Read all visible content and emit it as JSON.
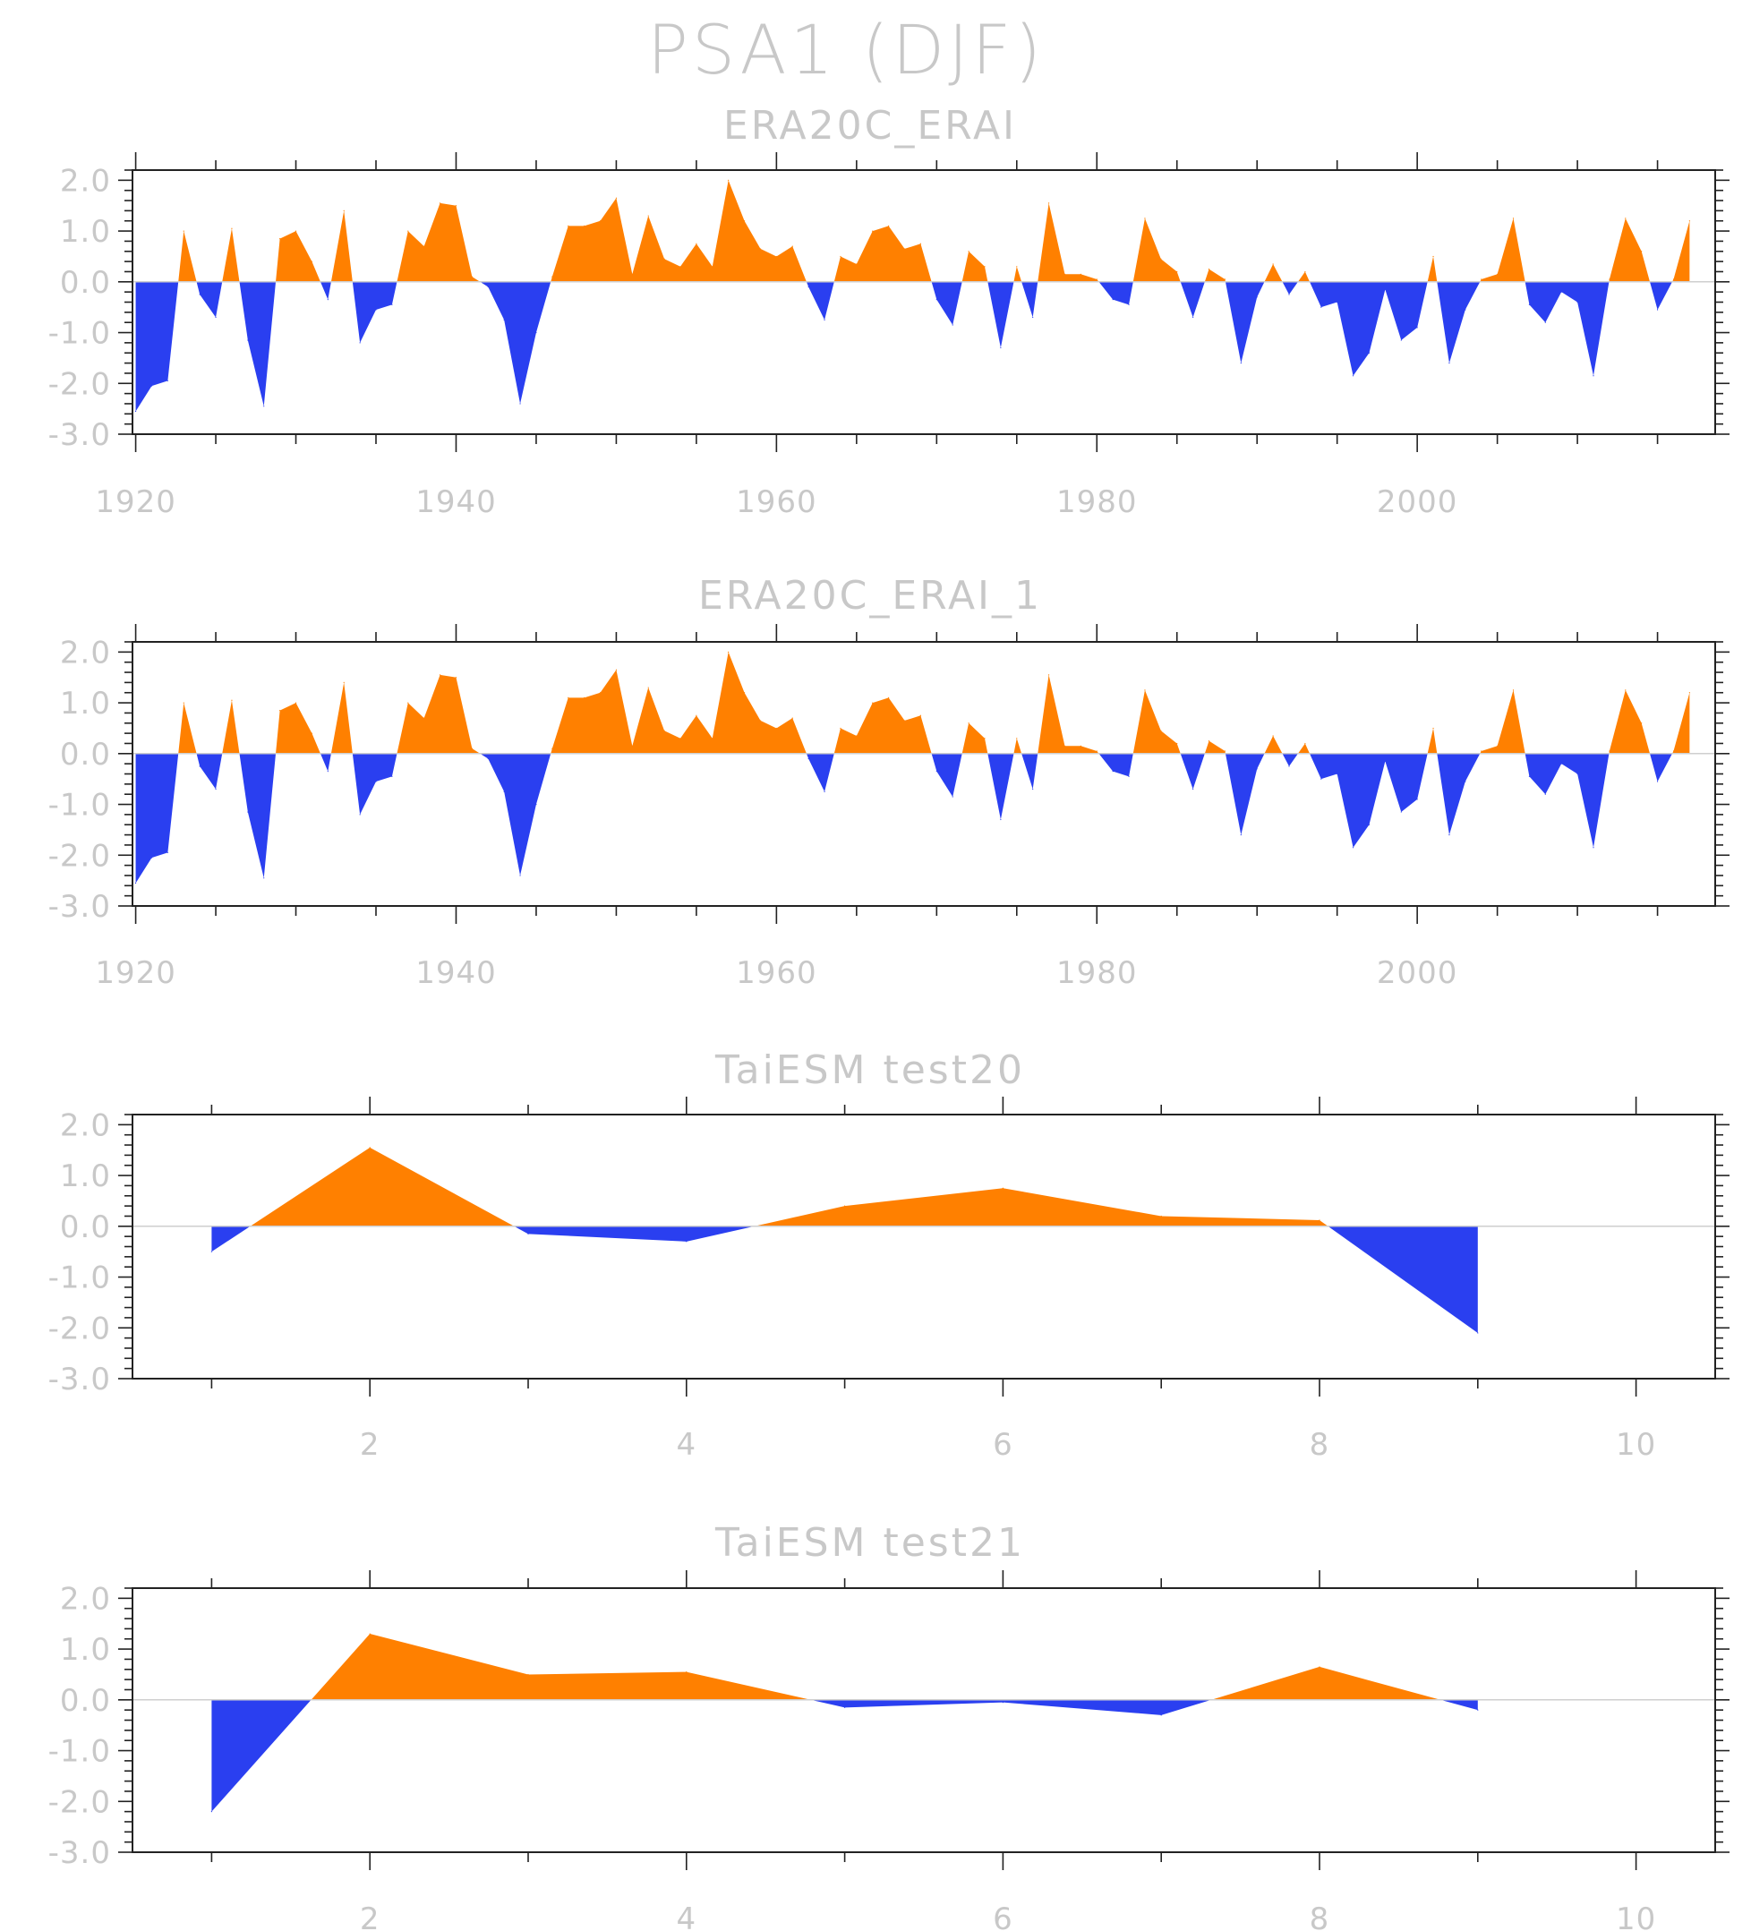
{
  "title": "PSA1 (DJF)",
  "colors": {
    "positive": "#ff8000",
    "negative": "#2a3ff0",
    "text": "#c8c8c8",
    "axis": "#222222",
    "zeroline": "#cfcfcf"
  },
  "chart_data": [
    {
      "type": "area",
      "title": "ERA20C_ERAI",
      "xlabel": "",
      "ylabel": "",
      "xlim": [
        1919.8,
        2018.6
      ],
      "ylim": [
        -3,
        2.2
      ],
      "yticks": [
        "2.0",
        "1.0",
        "0.0",
        "-1.0",
        "-2.0",
        "-3.0"
      ],
      "xticks": [
        "1920",
        "1940",
        "1960",
        "1980",
        "2000"
      ],
      "x_start": 1920,
      "values": [
        -2.55,
        -2.05,
        -1.95,
        1.0,
        -0.25,
        -0.7,
        1.05,
        -1.15,
        -2.45,
        0.85,
        1.0,
        0.4,
        -0.35,
        1.4,
        -1.2,
        -0.55,
        -0.45,
        1.0,
        0.7,
        1.55,
        1.5,
        0.1,
        -0.1,
        -0.75,
        -2.4,
        -1.0,
        0.1,
        1.1,
        1.1,
        1.2,
        1.65,
        0.15,
        1.3,
        0.45,
        0.3,
        0.75,
        0.3,
        2.0,
        1.2,
        0.65,
        0.5,
        0.7,
        -0.1,
        -0.75,
        0.5,
        0.35,
        1.0,
        1.1,
        0.65,
        0.75,
        -0.35,
        -0.85,
        0.6,
        0.3,
        -1.3,
        0.3,
        -0.7,
        1.55,
        0.15,
        0.15,
        0.05,
        -0.35,
        -0.45,
        1.25,
        0.45,
        0.2,
        -0.7,
        0.25,
        0.05,
        -1.6,
        -0.3,
        0.35,
        -0.25,
        0.2,
        -0.5,
        -0.4,
        -1.85,
        -1.4,
        -0.15,
        -1.15,
        -0.9,
        0.5,
        -1.6,
        -0.55,
        0.05,
        0.15,
        1.25,
        -0.45,
        -0.8,
        -0.2,
        -0.4,
        -1.85,
        0.05,
        1.25,
        0.6,
        -0.55,
        0.05,
        1.2
      ]
    },
    {
      "type": "area",
      "title": "ERA20C_ERAI_1",
      "xlabel": "",
      "ylabel": "",
      "xlim": [
        1919.8,
        2018.6
      ],
      "ylim": [
        -3,
        2.2
      ],
      "yticks": [
        "2.0",
        "1.0",
        "0.0",
        "-1.0",
        "-2.0",
        "-3.0"
      ],
      "xticks": [
        "1920",
        "1940",
        "1960",
        "1980",
        "2000"
      ],
      "x_start": 1920,
      "values": [
        -2.55,
        -2.05,
        -1.95,
        1.0,
        -0.25,
        -0.7,
        1.05,
        -1.15,
        -2.45,
        0.85,
        1.0,
        0.4,
        -0.35,
        1.4,
        -1.2,
        -0.55,
        -0.45,
        1.0,
        0.7,
        1.55,
        1.5,
        0.1,
        -0.1,
        -0.75,
        -2.4,
        -1.0,
        0.1,
        1.1,
        1.1,
        1.2,
        1.65,
        0.15,
        1.3,
        0.45,
        0.3,
        0.75,
        0.3,
        2.0,
        1.2,
        0.65,
        0.5,
        0.7,
        -0.1,
        -0.75,
        0.5,
        0.35,
        1.0,
        1.1,
        0.65,
        0.75,
        -0.35,
        -0.85,
        0.6,
        0.3,
        -1.3,
        0.3,
        -0.7,
        1.55,
        0.15,
        0.15,
        0.05,
        -0.35,
        -0.45,
        1.25,
        0.45,
        0.2,
        -0.7,
        0.25,
        0.05,
        -1.6,
        -0.3,
        0.35,
        -0.25,
        0.2,
        -0.5,
        -0.4,
        -1.85,
        -1.4,
        -0.15,
        -1.15,
        -0.9,
        0.5,
        -1.6,
        -0.55,
        0.05,
        0.15,
        1.25,
        -0.45,
        -0.8,
        -0.2,
        -0.4,
        -1.85,
        0.05,
        1.25,
        0.6,
        -0.55,
        0.05,
        1.2
      ]
    },
    {
      "type": "area",
      "title": "TaiESM test20",
      "xlabel": "",
      "ylabel": "",
      "xlim": [
        0.5,
        10.5
      ],
      "ylim": [
        -3,
        2.2
      ],
      "yticks": [
        "2.0",
        "1.0",
        "0.0",
        "-1.0",
        "-2.0",
        "-3.0"
      ],
      "xticks": [
        "2",
        "4",
        "6",
        "8",
        "10"
      ],
      "x_start": 1,
      "values": [
        -0.5,
        1.55,
        -0.15,
        -0.3,
        0.4,
        0.75,
        0.2,
        0.12,
        -2.1
      ]
    },
    {
      "type": "area",
      "title": "TaiESM test21",
      "xlabel": "",
      "ylabel": "",
      "xlim": [
        0.5,
        10.5
      ],
      "ylim": [
        -3,
        2.2
      ],
      "yticks": [
        "2.0",
        "1.0",
        "0.0",
        "-1.0",
        "-2.0",
        "-3.0"
      ],
      "xticks": [
        "2",
        "4",
        "6",
        "8",
        "10"
      ],
      "x_start": 1,
      "values": [
        -2.2,
        1.3,
        0.5,
        0.55,
        -0.15,
        -0.05,
        -0.3,
        0.65,
        -0.2
      ]
    }
  ]
}
